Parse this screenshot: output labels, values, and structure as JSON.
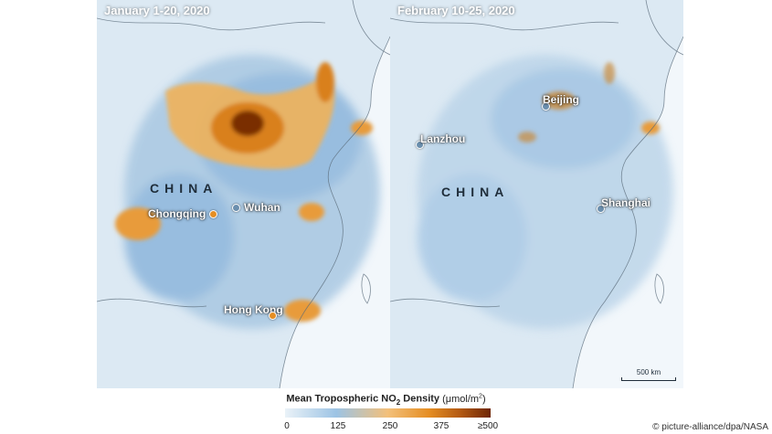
{
  "panels": [
    {
      "title": "January 1-20, 2020",
      "country_label": "CHINA",
      "cities": [
        {
          "name": "Chongqing",
          "marker_color": "#e58e23"
        },
        {
          "name": "Wuhan",
          "marker_color": "#6b8fae"
        },
        {
          "name": "Hong Kong",
          "marker_color": "#e58e23"
        }
      ]
    },
    {
      "title": "February 10-25, 2020",
      "country_label": "CHINA",
      "cities": [
        {
          "name": "Beijing",
          "marker_color": "#6b8fae"
        },
        {
          "name": "Lanzhou",
          "marker_color": "#6b8fae"
        },
        {
          "name": "Shanghai",
          "marker_color": "#6b8fae"
        }
      ],
      "scale_bar_label": "500 km"
    }
  ],
  "legend": {
    "title_prefix": "Mean Tropospheric NO",
    "title_subscript": "2",
    "title_suffix": " Density",
    "unit_prefix": "(μmol/m",
    "unit_superscript": "2",
    "unit_suffix": ")",
    "ticks": [
      "0",
      "125",
      "250",
      "375",
      "≥500"
    ],
    "colors": [
      "#eaf2f8",
      "#9cc3e4",
      "#f3c07a",
      "#e58e23",
      "#b45a12",
      "#6e2604"
    ]
  },
  "credit": "© picture-alliance/dpa/NASA"
}
